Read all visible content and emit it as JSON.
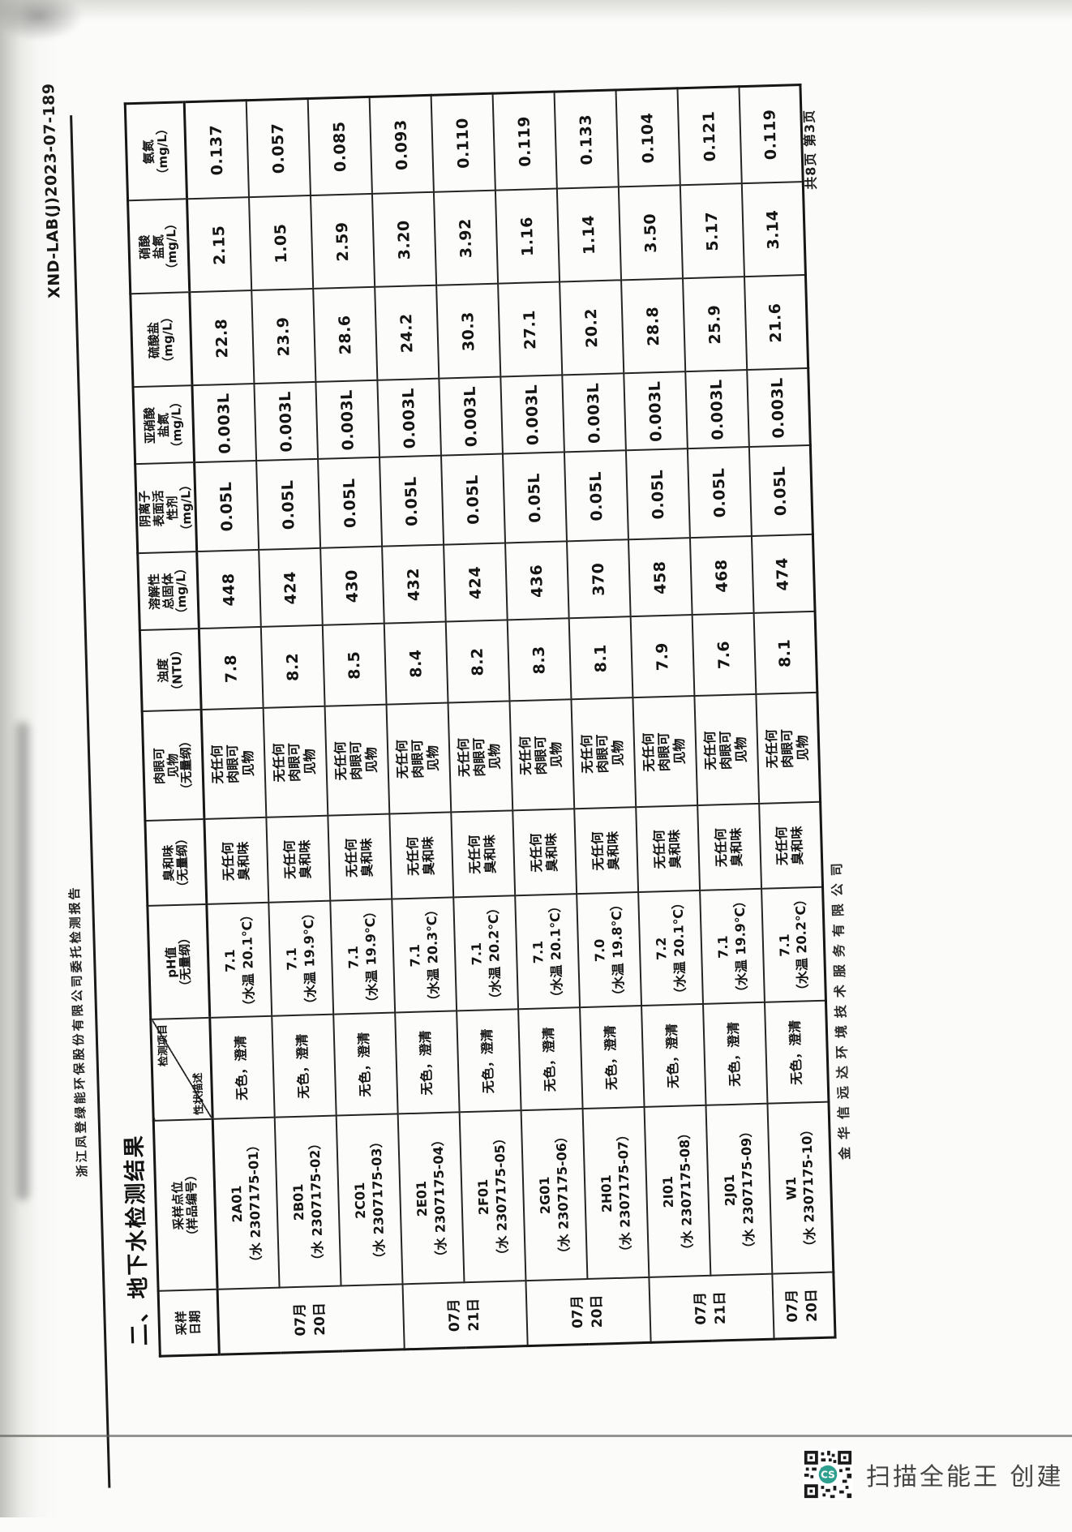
{
  "page": {
    "header_left": "浙江凤登绿能环保股份有限公司委托检测报告",
    "header_right": "XND-LAB(J)2023-07-189",
    "section_title": "二、地下水检测结果",
    "footer_company": "金华信远达环境技术服务有限公司",
    "page_indicator": "共8页 第3页",
    "scanner_watermark": "扫描全能王 创建",
    "qr_logo_text": "CS"
  },
  "colors": {
    "qr_logo_teal": "#2fa08f",
    "ink": "#1b1b1b"
  },
  "table": {
    "corner": {
      "top_right": "检测项目",
      "bottom_left": "性状描述"
    },
    "columns": [
      {
        "key": "date",
        "label": "采样\n日期"
      },
      {
        "key": "site",
        "label": "采样点位\n（样品编号）"
      },
      {
        "key": "appearance",
        "label": ""
      },
      {
        "key": "ph",
        "label": "pH值\n（无量纲）"
      },
      {
        "key": "odor",
        "label": "臭和味\n（无量纲）"
      },
      {
        "key": "visible",
        "label": "肉眼可\n见物\n（无量纲）"
      },
      {
        "key": "turbidity",
        "label": "浊度\n（NTU）"
      },
      {
        "key": "tds",
        "label": "溶解性\n总固体\n（mg/L）"
      },
      {
        "key": "anionic",
        "label": "阴离子\n表面活\n性剂\n（mg/L）"
      },
      {
        "key": "nitrite",
        "label": "亚硝酸\n盐氮\n（mg/L）"
      },
      {
        "key": "sulfate",
        "label": "硫酸盐\n（mg/L）"
      },
      {
        "key": "nitrate",
        "label": "硝酸\n盐氮\n（mg/L）"
      },
      {
        "key": "ammonia",
        "label": "氨氮\n（mg/L）"
      }
    ],
    "date_groups": [
      {
        "label": "07月\n20日",
        "span": 3
      },
      {
        "label": "07月\n21日",
        "span": 2
      },
      {
        "label": "07月\n20日",
        "span": 2
      },
      {
        "label": "07月\n21日",
        "span": 2
      },
      {
        "label": "07月\n20日",
        "span": 1
      }
    ],
    "rows": [
      {
        "site": "2A01\n（水 2307175-01）",
        "appearance": "无色，澄清",
        "ph": "7.1\n（水温 20.1℃）",
        "odor": "无任何\n臭和味",
        "visible": "无任何\n肉眼可\n见物",
        "turbidity": "7.8",
        "tds": "448",
        "anionic": "0.05L",
        "nitrite": "0.003L",
        "sulfate": "22.8",
        "nitrate": "2.15",
        "ammonia": "0.137"
      },
      {
        "site": "2B01\n（水 2307175-02）",
        "appearance": "无色，澄清",
        "ph": "7.1\n（水温 19.9℃）",
        "odor": "无任何\n臭和味",
        "visible": "无任何\n肉眼可\n见物",
        "turbidity": "8.2",
        "tds": "424",
        "anionic": "0.05L",
        "nitrite": "0.003L",
        "sulfate": "23.9",
        "nitrate": "1.05",
        "ammonia": "0.057"
      },
      {
        "site": "2C01\n（水 2307175-03）",
        "appearance": "无色，澄清",
        "ph": "7.1\n（水温 19.9℃）",
        "odor": "无任何\n臭和味",
        "visible": "无任何\n肉眼可\n见物",
        "turbidity": "8.5",
        "tds": "430",
        "anionic": "0.05L",
        "nitrite": "0.003L",
        "sulfate": "28.6",
        "nitrate": "2.59",
        "ammonia": "0.085"
      },
      {
        "site": "2E01\n（水 2307175-04）",
        "appearance": "无色，澄清",
        "ph": "7.1\n（水温 20.3℃）",
        "odor": "无任何\n臭和味",
        "visible": "无任何\n肉眼可\n见物",
        "turbidity": "8.4",
        "tds": "432",
        "anionic": "0.05L",
        "nitrite": "0.003L",
        "sulfate": "24.2",
        "nitrate": "3.20",
        "ammonia": "0.093"
      },
      {
        "site": "2F01\n（水 2307175-05）",
        "appearance": "无色，澄清",
        "ph": "7.1\n（水温 20.2℃）",
        "odor": "无任何\n臭和味",
        "visible": "无任何\n肉眼可\n见物",
        "turbidity": "8.2",
        "tds": "424",
        "anionic": "0.05L",
        "nitrite": "0.003L",
        "sulfate": "30.3",
        "nitrate": "3.92",
        "ammonia": "0.110"
      },
      {
        "site": "2G01\n（水 2307175-06）",
        "appearance": "无色，澄清",
        "ph": "7.1\n（水温 20.1℃）",
        "odor": "无任何\n臭和味",
        "visible": "无任何\n肉眼可\n见物",
        "turbidity": "8.3",
        "tds": "436",
        "anionic": "0.05L",
        "nitrite": "0.003L",
        "sulfate": "27.1",
        "nitrate": "1.16",
        "ammonia": "0.119"
      },
      {
        "site": "2H01\n（水 2307175-07）",
        "appearance": "无色，澄清",
        "ph": "7.0\n（水温 19.8℃）",
        "odor": "无任何\n臭和味",
        "visible": "无任何\n肉眼可\n见物",
        "turbidity": "8.1",
        "tds": "370",
        "anionic": "0.05L",
        "nitrite": "0.003L",
        "sulfate": "20.2",
        "nitrate": "1.14",
        "ammonia": "0.133"
      },
      {
        "site": "2I01\n（水 2307175-08）",
        "appearance": "无色，澄清",
        "ph": "7.2\n（水温 20.1℃）",
        "odor": "无任何\n臭和味",
        "visible": "无任何\n肉眼可\n见物",
        "turbidity": "7.9",
        "tds": "458",
        "anionic": "0.05L",
        "nitrite": "0.003L",
        "sulfate": "28.8",
        "nitrate": "3.50",
        "ammonia": "0.104"
      },
      {
        "site": "2J01\n（水 2307175-09）",
        "appearance": "无色，澄清",
        "ph": "7.1\n（水温 19.9℃）",
        "odor": "无任何\n臭和味",
        "visible": "无任何\n肉眼可\n见物",
        "turbidity": "7.6",
        "tds": "468",
        "anionic": "0.05L",
        "nitrite": "0.003L",
        "sulfate": "25.9",
        "nitrate": "5.17",
        "ammonia": "0.121"
      },
      {
        "site": "W1\n（水 2307175-10）",
        "appearance": "无色，澄清",
        "ph": "7.1\n（水温 20.2℃）",
        "odor": "无任何\n臭和味",
        "visible": "无任何\n肉眼可\n见物",
        "turbidity": "8.1",
        "tds": "474",
        "anionic": "0.05L",
        "nitrite": "0.003L",
        "sulfate": "21.6",
        "nitrate": "3.14",
        "ammonia": "0.119"
      }
    ]
  }
}
